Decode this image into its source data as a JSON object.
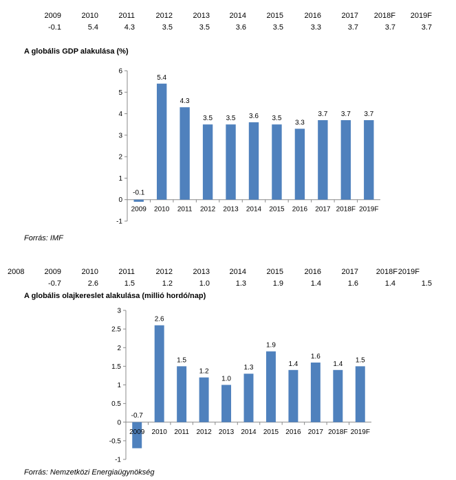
{
  "table1": {
    "years": [
      "2009",
      "2010",
      "2011",
      "2012",
      "2013",
      "2014",
      "2015",
      "2016",
      "2017",
      "2018F",
      "2019F"
    ],
    "values": [
      "-0.1",
      "5.4",
      "4.3",
      "3.5",
      "3.5",
      "3.6",
      "3.5",
      "3.3",
      "3.7",
      "3.7",
      "3.7"
    ]
  },
  "table2": {
    "lead_year": "2008",
    "years": [
      "2009",
      "2010",
      "2011",
      "2012",
      "2013",
      "2014",
      "2015",
      "2016",
      "2017",
      "2018F",
      "2019F"
    ],
    "values": [
      "-0.7",
      "2.6",
      "1.5",
      "1.2",
      "1.0",
      "1.3",
      "1.9",
      "1.4",
      "1.6",
      "1.4",
      "1.5"
    ]
  },
  "chart_data": [
    {
      "type": "bar",
      "title": "A globális GDP alakulása (%)",
      "source": "Forrás: IMF",
      "categories": [
        "2009",
        "2010",
        "2011",
        "2012",
        "2013",
        "2014",
        "2015",
        "2016",
        "2017",
        "2018F",
        "2019F"
      ],
      "values": [
        -0.1,
        5.4,
        4.3,
        3.5,
        3.5,
        3.6,
        3.5,
        3.3,
        3.7,
        3.7,
        3.7
      ],
      "data_labels": [
        "-0.1",
        "5.4",
        "4.3",
        "3.5",
        "3.5",
        "3.6",
        "3.5",
        "3.3",
        "3.7",
        "3.7",
        "3.7"
      ],
      "ylim": [
        -1,
        6
      ],
      "yticks": [
        "-1",
        "0",
        "1",
        "2",
        "3",
        "4",
        "5",
        "6"
      ],
      "grid": false,
      "bar_color": "#4f81bd"
    },
    {
      "type": "bar",
      "title": "A globális olajkereslet alakulása (millió hordó/nap)",
      "source": "Forrás: Nemzetközi Energiaügynökség",
      "categories": [
        "2009",
        "2010",
        "2011",
        "2012",
        "2013",
        "2014",
        "2015",
        "2016",
        "2017",
        "2018F",
        "2019F"
      ],
      "values": [
        -0.7,
        2.6,
        1.5,
        1.2,
        1.0,
        1.3,
        1.9,
        1.4,
        1.6,
        1.4,
        1.5
      ],
      "data_labels": [
        "-0.7",
        "2.6",
        "1.5",
        "1.2",
        "1.0",
        "1.3",
        "1.9",
        "1.4",
        "1.6",
        "1.4",
        "1.5"
      ],
      "ylim": [
        -1,
        3
      ],
      "yticks": [
        "-1",
        "-0.5",
        "0",
        "0.5",
        "1",
        "1.5",
        "2",
        "2.5",
        "3"
      ],
      "grid": false,
      "bar_color": "#4f81bd"
    }
  ]
}
